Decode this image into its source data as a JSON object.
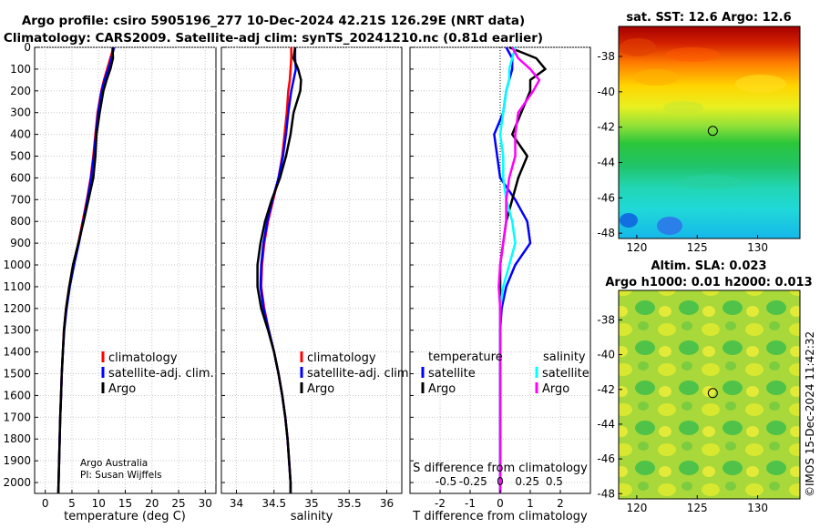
{
  "title": {
    "line1": "Argo profile: csiro 5905196_277 10-Dec-2024 42.21S 126.29E (NRT data)",
    "line2": "Climatology: CARS2009. Satellite-adj clim: synTS_20241210.nc (0.81d earlier)"
  },
  "colors": {
    "climatology": "#ff0000",
    "satellite_adj": "#0000ff",
    "argo": "#000000",
    "sat_temp": "#0000ff",
    "sat_sal": "#00ffff",
    "argo_temp": "#000000",
    "argo_sal": "#ff00ff"
  },
  "chart_data": [
    {
      "id": "temperature",
      "type": "line",
      "xlabel": "temperature (deg C)",
      "ylabel": "",
      "xlim": [
        -2,
        32
      ],
      "ylim": [
        0,
        2050
      ],
      "xticks": [
        0,
        5,
        10,
        15,
        20,
        25,
        30
      ],
      "yticks": [
        0,
        100,
        200,
        300,
        400,
        500,
        600,
        700,
        800,
        900,
        1000,
        1100,
        1200,
        1300,
        1400,
        1500,
        1600,
        1700,
        1800,
        1900,
        2000
      ],
      "grid": true,
      "legend_position": "lower-right",
      "legend": [
        "climatology",
        "satellite-adj. clim.",
        "Argo"
      ],
      "depth": [
        0,
        50,
        100,
        150,
        200,
        300,
        400,
        500,
        600,
        700,
        800,
        900,
        1000,
        1100,
        1200,
        1300,
        1400,
        1500,
        1600,
        1700,
        1800,
        1900,
        2000,
        2050
      ],
      "series": [
        {
          "name": "climatology",
          "color": "#ff0000",
          "values": [
            12.8,
            12.2,
            11.6,
            11.0,
            10.5,
            9.8,
            9.4,
            9.0,
            8.5,
            7.8,
            7.0,
            6.2,
            5.3,
            4.5,
            3.9,
            3.5,
            3.3,
            3.1,
            2.95,
            2.8,
            2.7,
            2.6,
            2.5,
            2.45
          ]
        },
        {
          "name": "satellite-adj. clim.",
          "color": "#0000ff",
          "values": [
            12.9,
            12.4,
            11.8,
            11.1,
            10.6,
            9.9,
            9.5,
            9.1,
            8.6,
            7.9,
            7.1,
            6.3,
            5.4,
            4.6,
            4.0,
            3.55,
            3.3,
            3.1,
            2.95,
            2.8,
            2.7,
            2.6,
            2.5,
            2.45
          ]
        },
        {
          "name": "Argo",
          "color": "#000000",
          "values": [
            12.6,
            12.7,
            12.2,
            11.5,
            10.9,
            10.2,
            9.6,
            9.4,
            9.0,
            8.1,
            7.2,
            6.2,
            5.2,
            4.5,
            3.9,
            3.5,
            3.3,
            3.1,
            2.95,
            2.8,
            2.7,
            2.6,
            2.5,
            2.45
          ]
        }
      ]
    },
    {
      "id": "salinity",
      "type": "line",
      "xlabel": "salinity",
      "ylabel": "",
      "xlim": [
        33.8,
        36.2
      ],
      "ylim": [
        0,
        2050
      ],
      "xticks": [
        34,
        34.5,
        35,
        35.5,
        36
      ],
      "grid": true,
      "legend_position": "lower-right",
      "legend": [
        "climatology",
        "satellite-adj. clim.",
        "Argo"
      ],
      "depth": [
        0,
        50,
        100,
        150,
        200,
        300,
        400,
        500,
        600,
        700,
        800,
        900,
        1000,
        1100,
        1200,
        1300,
        1400,
        1500,
        1600,
        1700,
        1800,
        1900,
        2000,
        2050
      ],
      "series": [
        {
          "name": "climatology",
          "color": "#ff0000",
          "values": [
            34.73,
            34.73,
            34.72,
            34.71,
            34.69,
            34.67,
            34.64,
            34.61,
            34.56,
            34.49,
            34.42,
            34.37,
            34.34,
            34.33,
            34.37,
            34.43,
            34.5,
            34.56,
            34.61,
            34.65,
            34.68,
            34.7,
            34.72,
            34.72
          ]
        },
        {
          "name": "satellite-adj. clim.",
          "color": "#0000ff",
          "values": [
            34.78,
            34.78,
            34.79,
            34.76,
            34.73,
            34.69,
            34.66,
            34.62,
            34.56,
            34.48,
            34.41,
            34.36,
            34.33,
            34.32,
            34.36,
            34.43,
            34.5,
            34.56,
            34.61,
            34.65,
            34.68,
            34.7,
            34.72,
            34.72
          ]
        },
        {
          "name": "Argo",
          "color": "#000000",
          "values": [
            34.78,
            34.76,
            34.82,
            34.86,
            34.85,
            34.76,
            34.72,
            34.66,
            34.58,
            34.47,
            34.38,
            34.32,
            34.28,
            34.28,
            34.33,
            34.42,
            34.5,
            34.56,
            34.61,
            34.65,
            34.68,
            34.7,
            34.72,
            34.72
          ]
        }
      ]
    },
    {
      "id": "differences",
      "type": "line",
      "xlabel": "T difference from climatology",
      "xlabel2": "S difference from climatology",
      "xlim": [
        -3,
        3
      ],
      "ylim": [
        0,
        2050
      ],
      "xticks": [
        -2,
        -1,
        0,
        1,
        2
      ],
      "xticks_S": [
        "-0.5",
        "-0.25",
        "0",
        "0.25",
        "0.5"
      ],
      "grid": true,
      "legend_position": "lower",
      "legend_headers": [
        "temperature",
        "salinity"
      ],
      "legend": [
        "satellite",
        "Argo",
        "satellite",
        "Argo"
      ],
      "depth": [
        0,
        50,
        100,
        150,
        200,
        300,
        400,
        500,
        600,
        700,
        800,
        900,
        1000,
        1100,
        1200,
        1300,
        1400,
        1500,
        1600,
        1700,
        1800,
        1900,
        2000,
        2050
      ],
      "series": [
        {
          "name": "temperature satellite",
          "color": "#0000ff",
          "values": [
            0.2,
            0.4,
            0.4,
            0.3,
            0.2,
            0.1,
            -0.2,
            -0.1,
            0,
            0.5,
            0.9,
            1.0,
            0.5,
            0.2,
            0.05,
            0,
            0,
            0,
            0,
            0,
            0,
            0,
            0,
            0
          ]
        },
        {
          "name": "temperature Argo",
          "color": "#000000",
          "values": [
            0.3,
            1.2,
            1.5,
            1.0,
            1.0,
            0.7,
            0.4,
            0.9,
            0.6,
            0.4,
            0.2,
            0.1,
            0,
            0,
            0,
            0,
            0,
            0,
            0,
            0,
            0,
            0,
            0,
            0
          ]
        },
        {
          "name": "salinity satellite",
          "color": "#00ffff",
          "values": [
            0.5,
            0.4,
            0.3,
            0.3,
            0.2,
            0.1,
            0,
            0.1,
            0.1,
            0.2,
            0.4,
            0.5,
            0.3,
            0.1,
            0,
            0,
            0,
            0,
            0,
            0,
            0,
            0,
            0,
            0
          ]
        },
        {
          "name": "salinity Argo",
          "color": "#ff00ff",
          "values": [
            0.4,
            0.6,
            1.0,
            1.3,
            1.1,
            0.6,
            0.5,
            0.5,
            0.3,
            0.2,
            0.2,
            0.1,
            0,
            -0.05,
            0,
            0,
            0,
            0,
            0,
            0,
            0,
            0,
            0,
            0
          ]
        }
      ]
    },
    {
      "id": "sst_map",
      "type": "heatmap",
      "title": "sat. SST: 12.6 Argo: 12.6",
      "xlim": [
        118.5,
        133.5
      ],
      "ylim": [
        -48.3,
        -36.3
      ],
      "xticks": [
        120,
        125,
        130
      ],
      "yticks": [
        -38,
        -40,
        -42,
        -44,
        -46,
        -48
      ],
      "marker": {
        "lon": 126.29,
        "lat": -42.21
      }
    },
    {
      "id": "sla_map",
      "type": "heatmap",
      "title": "Altim. SLA: 0.023",
      "title2": "Argo h1000: 0.01 h2000: 0.013",
      "xlim": [
        118.5,
        133.5
      ],
      "ylim": [
        -48.3,
        -36.3
      ],
      "xticks": [
        120,
        125,
        130
      ],
      "yticks": [
        -38,
        -40,
        -42,
        -44,
        -46,
        -48
      ],
      "marker": {
        "lon": 126.29,
        "lat": -42.21
      }
    }
  ],
  "credits": {
    "org": "Argo Australia",
    "pi": "PI: Susan Wijffels",
    "stamp": "©IMOS 15-Dec-2024 11:42:32"
  }
}
